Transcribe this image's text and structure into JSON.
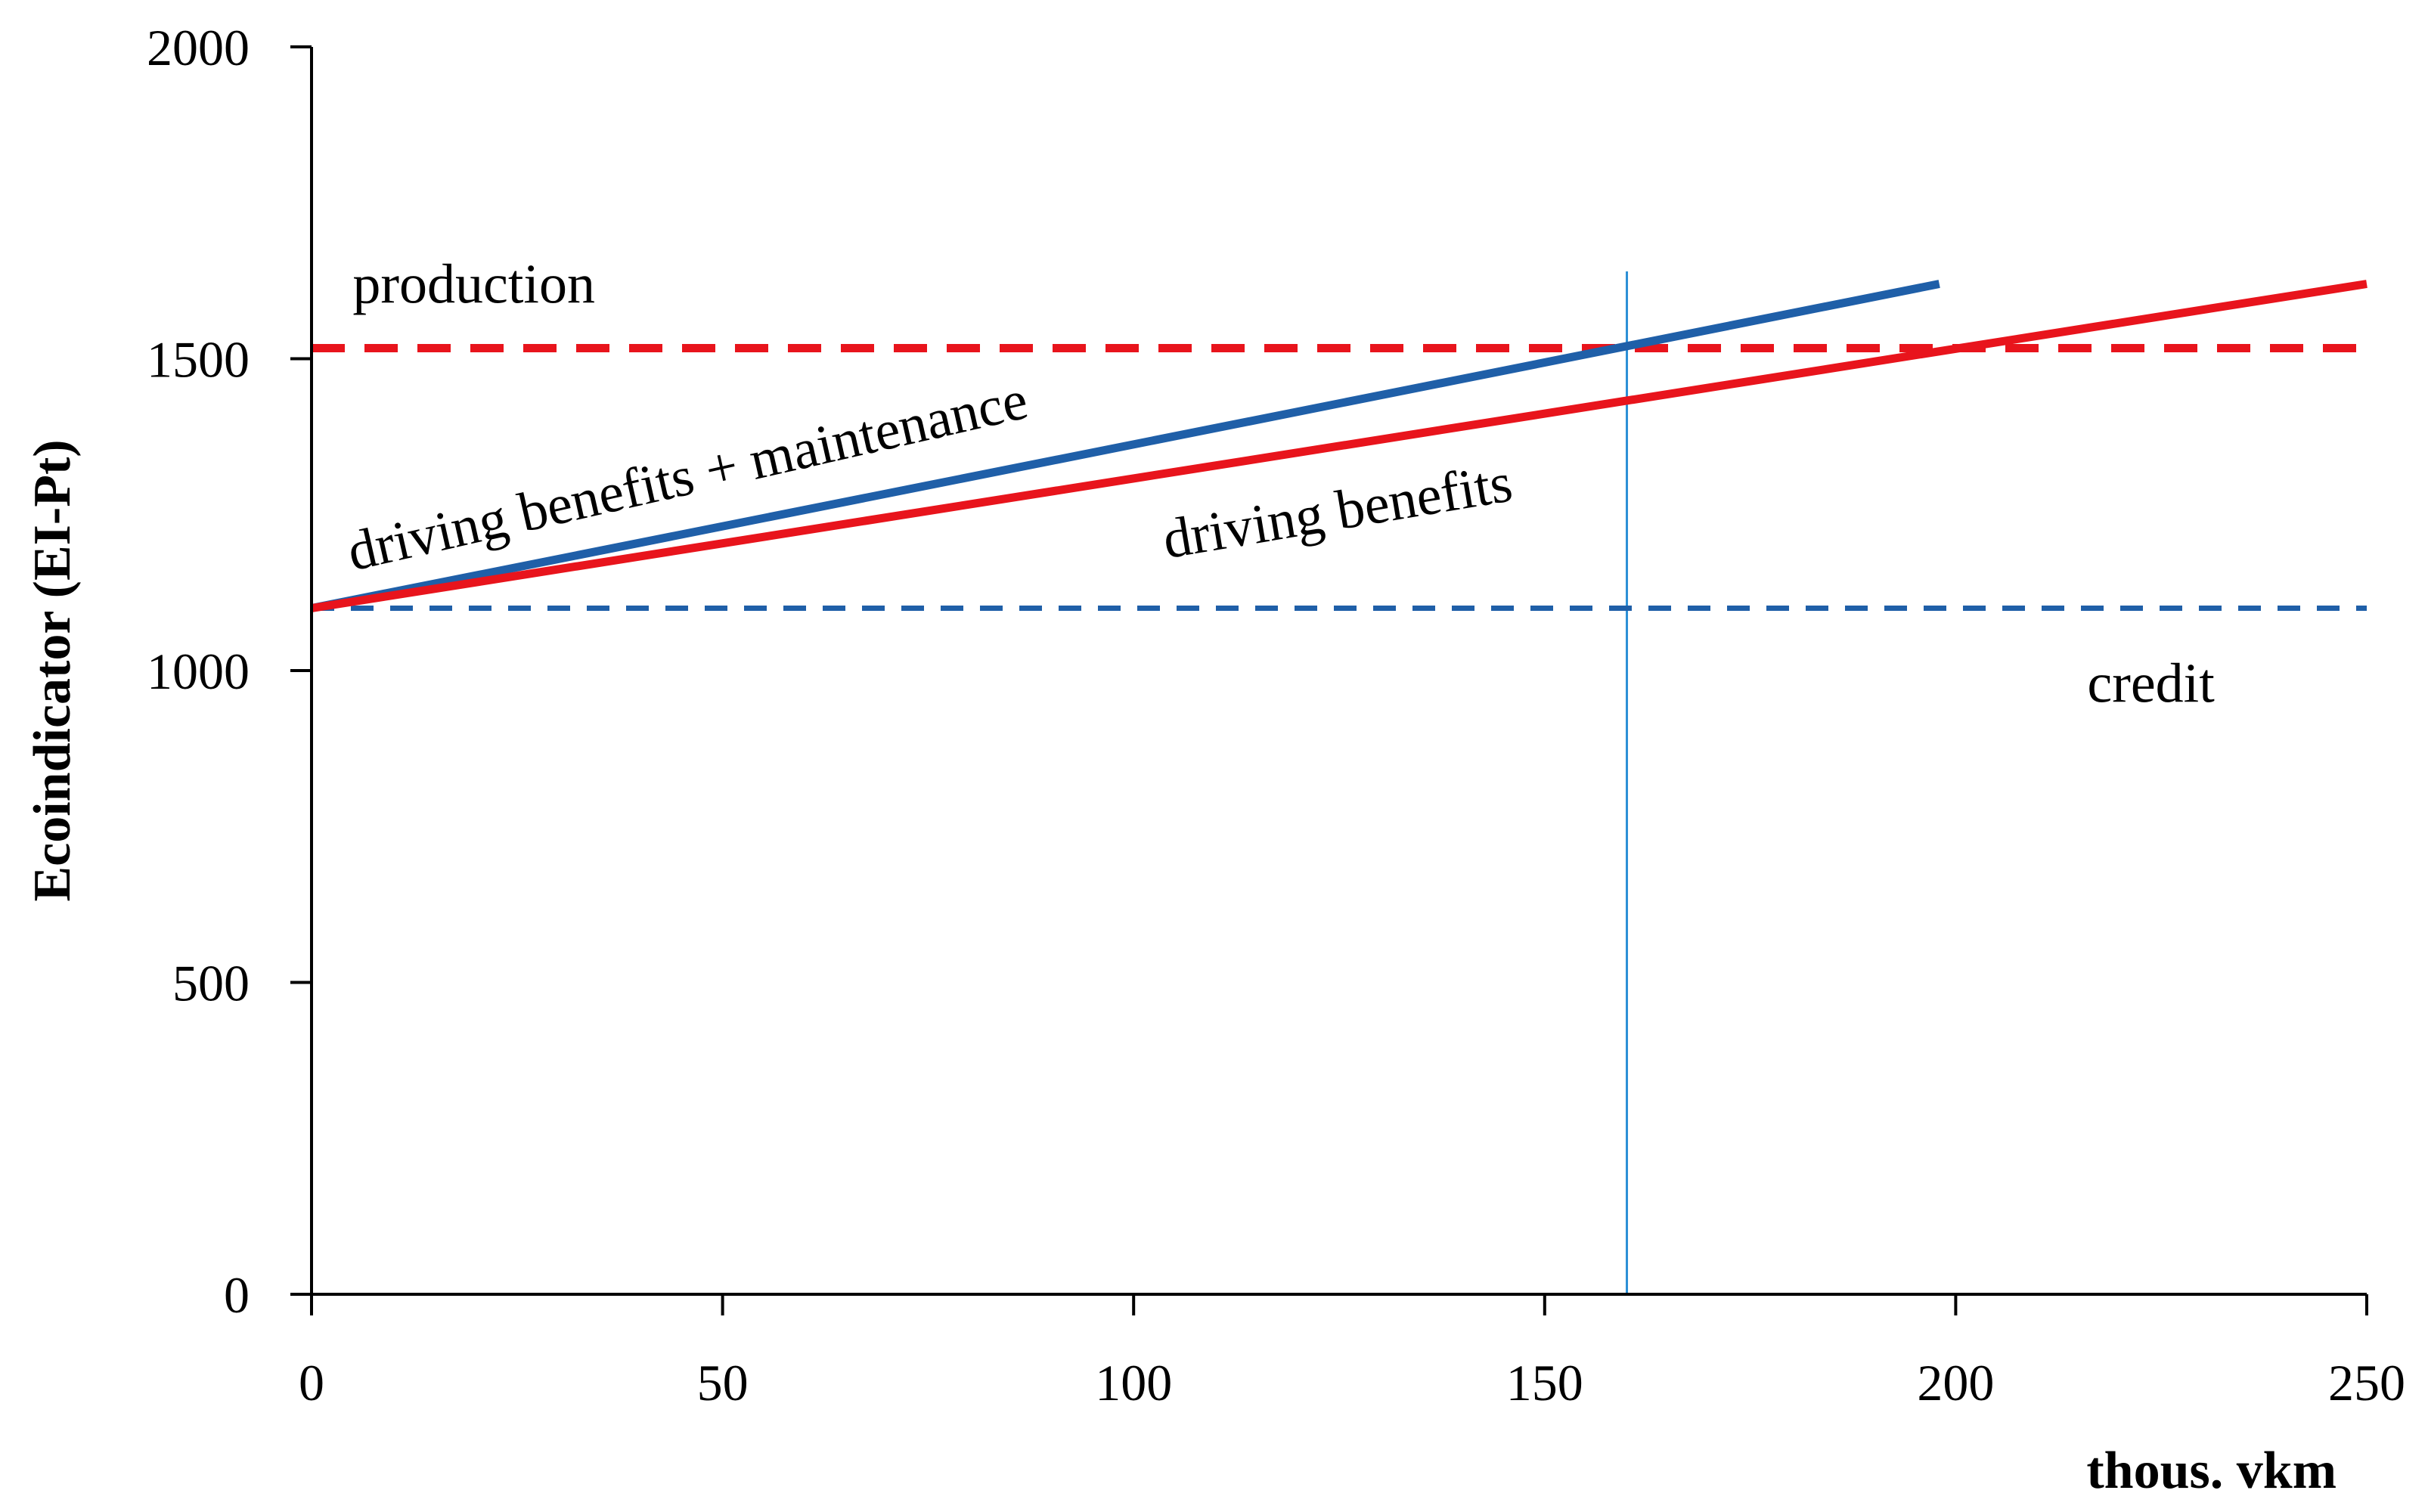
{
  "chart_data": {
    "type": "line",
    "title": "",
    "xlabel": "thous. vkm",
    "ylabel": "Ecoindicator (EI-Pt)",
    "xlim": [
      0,
      250
    ],
    "ylim": [
      0,
      2000
    ],
    "xticks": [
      0,
      50,
      100,
      150,
      200,
      250
    ],
    "yticks": [
      0,
      500,
      1000,
      1500,
      2000
    ],
    "xtick_labels": [
      "0",
      "50",
      "100",
      "150",
      "200",
      "250"
    ],
    "ytick_labels": [
      "0",
      "500",
      "1000",
      "1500",
      "2000"
    ],
    "grid": false,
    "legend": "none",
    "series": [
      {
        "name": "driving benefits + maintenance",
        "color": "#1f5fa8",
        "style": "solid",
        "x": [
          0,
          198
        ],
        "y": [
          1100,
          1620
        ]
      },
      {
        "name": "driving benefits",
        "color": "#e8141c",
        "style": "solid",
        "x": [
          0,
          250
        ],
        "y": [
          1100,
          1620
        ]
      },
      {
        "name": "production",
        "color": "#e8141c",
        "style": "dashed",
        "x": [
          0,
          250
        ],
        "y": [
          1517,
          1517
        ]
      },
      {
        "name": "credit",
        "color": "#1f5fa8",
        "style": "dashed",
        "x": [
          0,
          250
        ],
        "y": [
          1100,
          1100
        ]
      }
    ],
    "reference_line": {
      "x": 160,
      "y_range": [
        0,
        1640
      ],
      "color": "#2b8fd6"
    },
    "annotations": [
      {
        "text": "production",
        "x": 5,
        "y": 1590,
        "rotation": 0
      },
      {
        "text": "driving benefits + maintenance",
        "x": 5,
        "y": 1160,
        "rotation": -12.8
      },
      {
        "text": "driving benefits",
        "x": 104,
        "y": 1180,
        "rotation": -9.5
      },
      {
        "text": "credit",
        "x": 216,
        "y": 950,
        "rotation": 0
      }
    ]
  }
}
